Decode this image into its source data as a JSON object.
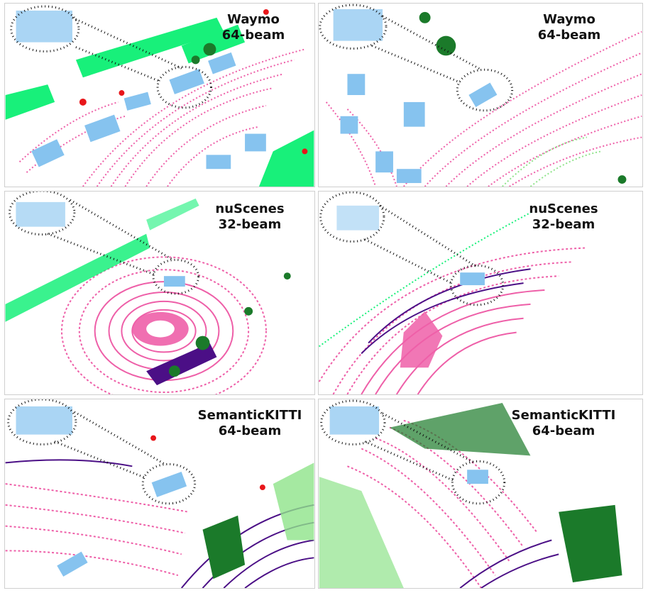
{
  "panels": [
    {
      "dataset": "Waymo",
      "beams": "64-beam"
    },
    {
      "dataset": "Waymo",
      "beams": "64-beam"
    },
    {
      "dataset": "nuScenes",
      "beams": "32-beam"
    },
    {
      "dataset": "nuScenes",
      "beams": "32-beam"
    },
    {
      "dataset": "SemanticKITTI",
      "beams": "64-beam"
    },
    {
      "dataset": "SemanticKITTI",
      "beams": "64-beam"
    }
  ],
  "colors": {
    "road": "#ee5fa8",
    "sidewalk": "#4b0f86",
    "vegetation": "#1b7a2a",
    "building": "#18f07a",
    "terrain": "#8fe38a",
    "vehicle": "#86c3ef",
    "person": "#e8161a"
  }
}
